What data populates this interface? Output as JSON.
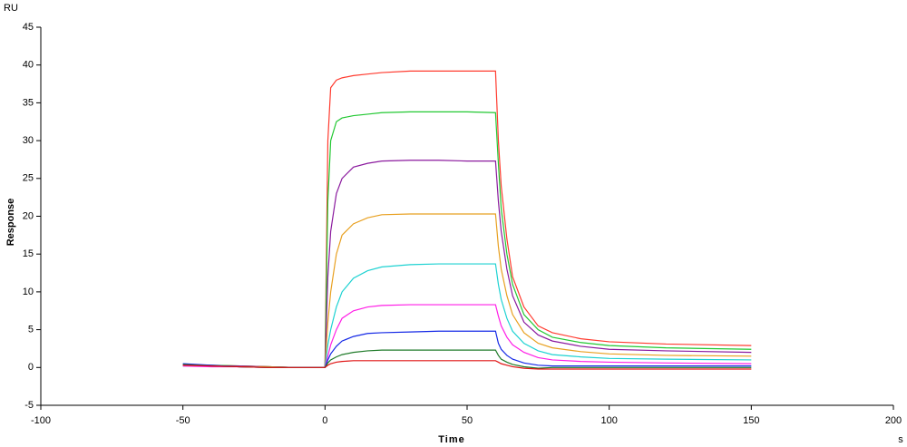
{
  "chart_data": {
    "type": "line",
    "y_unit": "RU",
    "ylabel": "Response",
    "xlabel": "Time",
    "x_unit": "s",
    "x": [
      -50,
      -40,
      -30,
      -20,
      -10,
      0,
      1,
      2,
      4,
      6,
      10,
      15,
      20,
      30,
      40,
      50,
      60,
      61,
      62,
      64,
      66,
      70,
      75,
      80,
      90,
      100,
      120,
      150
    ],
    "series": [
      {
        "color": "#ff3b2f",
        "values": [
          0.4,
          0.3,
          0.2,
          0.1,
          0,
          0,
          30,
          37,
          38,
          38.3,
          38.6,
          38.8,
          39,
          39.2,
          39.2,
          39.2,
          39.2,
          30,
          24,
          17,
          12,
          8,
          5.5,
          4.6,
          3.8,
          3.4,
          3.1,
          2.9
        ]
      },
      {
        "color": "#22c832",
        "values": [
          0.3,
          0.3,
          0.2,
          0.1,
          0,
          0,
          22,
          30,
          32.5,
          33,
          33.3,
          33.5,
          33.7,
          33.8,
          33.8,
          33.8,
          33.7,
          27,
          21,
          15,
          11,
          7,
          5,
          4,
          3.3,
          2.9,
          2.6,
          2.4
        ]
      },
      {
        "color": "#8b1a9e",
        "values": [
          0.3,
          0.2,
          0.2,
          0.1,
          0,
          0,
          12,
          18,
          23,
          25,
          26.5,
          27,
          27.3,
          27.4,
          27.4,
          27.3,
          27.3,
          22,
          18,
          13,
          9.5,
          6,
          4.3,
          3.5,
          2.8,
          2.4,
          2.2,
          2
        ]
      },
      {
        "color": "#e8a020",
        "values": [
          0.3,
          0.2,
          0.1,
          0.1,
          0,
          0,
          6,
          10,
          15,
          17.5,
          19,
          19.8,
          20.2,
          20.3,
          20.3,
          20.3,
          20.3,
          16,
          13,
          9.5,
          7,
          4.6,
          3.2,
          2.6,
          2.1,
          1.8,
          1.6,
          1.5
        ]
      },
      {
        "color": "#1ed2d2",
        "values": [
          0.2,
          0.2,
          0.1,
          0,
          0,
          0,
          3,
          5,
          8,
          10,
          11.8,
          12.8,
          13.3,
          13.6,
          13.7,
          13.7,
          13.7,
          11,
          9,
          6.5,
          4.8,
          3.2,
          2.2,
          1.7,
          1.4,
          1.2,
          1.1,
          1
        ]
      },
      {
        "color": "#ff1ee6",
        "values": [
          0.2,
          0.1,
          0.1,
          0,
          0,
          0,
          1.5,
          3,
          5,
          6.5,
          7.5,
          8,
          8.2,
          8.3,
          8.3,
          8.3,
          8.3,
          6.8,
          5.5,
          4,
          3,
          2,
          1.3,
          1,
          0.8,
          0.7,
          0.6,
          0.5
        ]
      },
      {
        "color": "#1428e6",
        "values": [
          0.5,
          0.3,
          0.1,
          0,
          0,
          0,
          1,
          1.8,
          2.8,
          3.5,
          4.1,
          4.5,
          4.6,
          4.7,
          4.8,
          4.8,
          4.8,
          3.2,
          2.4,
          1.6,
          1.1,
          0.6,
          0.3,
          0.2,
          0.2,
          0.2,
          0.2,
          0.2
        ]
      },
      {
        "color": "#1e7a28",
        "values": [
          0.4,
          0.2,
          0.1,
          0,
          0,
          0,
          0.6,
          1,
          1.4,
          1.7,
          2,
          2.2,
          2.3,
          2.3,
          2.3,
          2.3,
          2.3,
          1.6,
          1.1,
          0.7,
          0.4,
          0.1,
          -0.1,
          0,
          0,
          0,
          0,
          0
        ]
      },
      {
        "color": "#e01414",
        "values": [
          0.3,
          0.2,
          0.1,
          0,
          0,
          0,
          0.3,
          0.5,
          0.7,
          0.8,
          0.9,
          0.9,
          0.9,
          0.9,
          0.9,
          0.9,
          0.9,
          0.7,
          0.5,
          0.3,
          0.1,
          -0.1,
          -0.2,
          -0.2,
          -0.2,
          -0.2,
          -0.2,
          -0.2
        ]
      }
    ],
    "xlim": [
      -100,
      200
    ],
    "xticks": [
      -100,
      -50,
      0,
      50,
      100,
      150,
      200
    ],
    "ylim": [
      -5,
      45
    ],
    "yticks": [
      -5,
      0,
      5,
      10,
      15,
      20,
      25,
      30,
      35,
      40,
      45
    ]
  }
}
